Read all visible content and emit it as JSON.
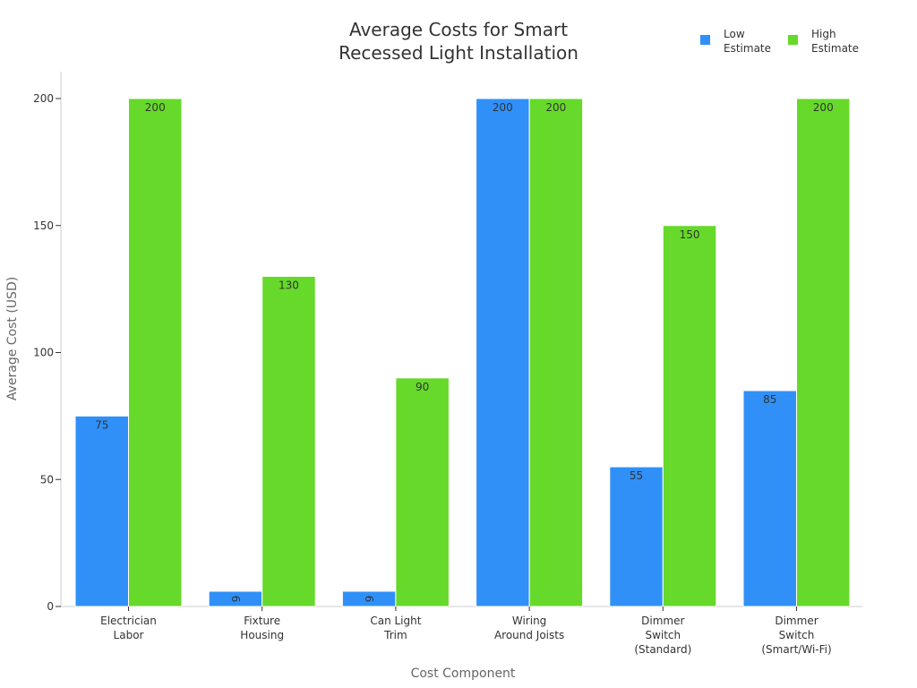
{
  "chart_data": {
    "type": "bar",
    "title": [
      "Average Costs for Smart",
      "Recessed Light Installation"
    ],
    "xlabel": "Cost Component",
    "ylabel": "Average Cost (USD)",
    "ylim": [
      0,
      200
    ],
    "yticks": [
      0,
      50,
      100,
      150,
      200
    ],
    "categories": [
      [
        "Electrician",
        "Labor"
      ],
      [
        "Fixture",
        "Housing"
      ],
      [
        "Can Light",
        "Trim"
      ],
      [
        "Wiring",
        "Around Joists"
      ],
      [
        "Dimmer",
        "Switch",
        "(Standard)"
      ],
      [
        "Dimmer",
        "Switch",
        "(Smart/Wi-Fi)"
      ]
    ],
    "series": [
      {
        "name": [
          "Low",
          "Estimate"
        ],
        "color": "#3090f8",
        "values": [
          75,
          6,
          6,
          200,
          55,
          85
        ]
      },
      {
        "name": [
          "High",
          "Estimate"
        ],
        "color": "#66d92a",
        "values": [
          200,
          130,
          90,
          200,
          150,
          200
        ]
      }
    ],
    "legend_position": "top-right",
    "grid": false
  }
}
